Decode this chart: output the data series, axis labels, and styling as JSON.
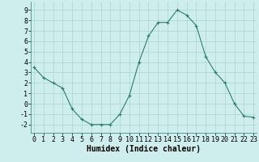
{
  "x": [
    0,
    1,
    2,
    3,
    4,
    5,
    6,
    7,
    8,
    9,
    10,
    11,
    12,
    13,
    14,
    15,
    16,
    17,
    18,
    19,
    20,
    21,
    22,
    23
  ],
  "y": [
    3.5,
    2.5,
    2.0,
    1.5,
    -0.5,
    -1.5,
    -2.0,
    -2.0,
    -2.0,
    -1.0,
    0.8,
    4.0,
    6.5,
    7.8,
    7.8,
    9.0,
    8.5,
    7.5,
    4.5,
    3.0,
    2.0,
    0.0,
    -1.2,
    -1.3
  ],
  "xlabel": "Humidex (Indice chaleur)",
  "ylim": [
    -2.8,
    9.8
  ],
  "xlim": [
    -0.3,
    23.3
  ],
  "yticks": [
    -2,
    -1,
    0,
    1,
    2,
    3,
    4,
    5,
    6,
    7,
    8,
    9
  ],
  "xticks": [
    0,
    1,
    2,
    3,
    4,
    5,
    6,
    7,
    8,
    9,
    10,
    11,
    12,
    13,
    14,
    15,
    16,
    17,
    18,
    19,
    20,
    21,
    22,
    23
  ],
  "line_color": "#2e7d6e",
  "marker_color": "#2e7d6e",
  "bg_color": "#ceeeed",
  "grid_color": "#aad4d0",
  "xlabel_fontsize": 7,
  "tick_fontsize": 6
}
